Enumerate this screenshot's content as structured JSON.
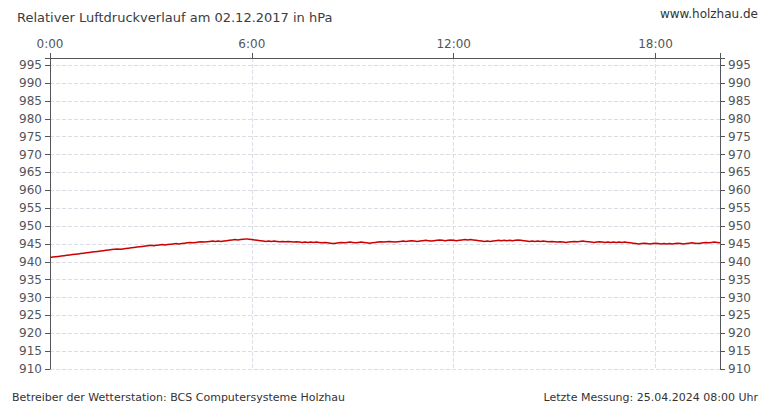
{
  "chart_data": {
    "type": "line",
    "title": "Relativer Luftdruckverlauf am 02.12.2017 in hPa",
    "annotations": [
      "www.holzhau.de",
      "Betreiber der Wetterstation: BCS Computersysteme Holzhau",
      "Letzte Messung: 25.04.2024 08:00 Uhr"
    ],
    "color": "#cc0000",
    "grid": true,
    "line_style": "dashed",
    "xlim": [
      0,
      239
    ],
    "xticks": [
      {
        "value": 0,
        "label": "0:00"
      },
      {
        "value": 72,
        "label": "6:00"
      },
      {
        "value": 144,
        "label": "12:00"
      },
      {
        "value": 216,
        "label": "18:00"
      }
    ],
    "ylim": [
      910,
      997
    ],
    "yticks": [
      910,
      915,
      920,
      925,
      930,
      935,
      940,
      945,
      950,
      955,
      960,
      965,
      970,
      975,
      980,
      985,
      990,
      995
    ],
    "y2lim": [
      910,
      997
    ],
    "y2ticks": [
      910,
      915,
      920,
      925,
      930,
      935,
      940,
      945,
      950,
      955,
      960,
      965,
      970,
      975,
      980,
      985,
      990,
      995
    ],
    "x": [
      0,
      1,
      2,
      3,
      4,
      5,
      6,
      7,
      8,
      9,
      10,
      11,
      12,
      13,
      14,
      15,
      16,
      17,
      18,
      19,
      20,
      21,
      22,
      23,
      24,
      25,
      26,
      27,
      28,
      29,
      30,
      31,
      32,
      33,
      34,
      35,
      36,
      37,
      38,
      39,
      40,
      41,
      42,
      43,
      44,
      45,
      46,
      47,
      48,
      49,
      50,
      51,
      52,
      53,
      54,
      55,
      56,
      57,
      58,
      59,
      60,
      61,
      62,
      63,
      64,
      65,
      66,
      67,
      68,
      69,
      70,
      71,
      72,
      73,
      74,
      75,
      76,
      77,
      78,
      79,
      80,
      81,
      82,
      83,
      84,
      85,
      86,
      87,
      88,
      89,
      90,
      91,
      92,
      93,
      94,
      95,
      96,
      97,
      98,
      99,
      100,
      101,
      102,
      103,
      104,
      105,
      106,
      107,
      108,
      109,
      110,
      111,
      112,
      113,
      114,
      115,
      116,
      117,
      118,
      119,
      120,
      121,
      122,
      123,
      124,
      125,
      126,
      127,
      128,
      129,
      130,
      131,
      132,
      133,
      134,
      135,
      136,
      137,
      138,
      139,
      140,
      141,
      142,
      143,
      144,
      145,
      146,
      147,
      148,
      149,
      150,
      151,
      152,
      153,
      154,
      155,
      156,
      157,
      158,
      159,
      160,
      161,
      162,
      163,
      164,
      165,
      166,
      167,
      168,
      169,
      170,
      171,
      172,
      173,
      174,
      175,
      176,
      177,
      178,
      179,
      180,
      181,
      182,
      183,
      184,
      185,
      186,
      187,
      188,
      189,
      190,
      191,
      192,
      193,
      194,
      195,
      196,
      197,
      198,
      199,
      200,
      201,
      202,
      203,
      204,
      205,
      206,
      207,
      208,
      209,
      210,
      211,
      212,
      213,
      214,
      215,
      216,
      217,
      218,
      219,
      220,
      221,
      222,
      223,
      224,
      225,
      226,
      227,
      228,
      229,
      230,
      231,
      232,
      233,
      234,
      235,
      236,
      237,
      238,
      239
    ],
    "values": [
      941.2,
      941.3,
      941.4,
      941.5,
      941.6,
      941.7,
      941.8,
      941.9,
      942.0,
      942.1,
      942.2,
      942.3,
      942.4,
      942.5,
      942.6,
      942.7,
      942.8,
      942.9,
      943.0,
      943.1,
      943.2,
      943.3,
      943.4,
      943.5,
      943.6,
      943.5,
      943.6,
      943.7,
      943.8,
      943.9,
      944.0,
      944.1,
      944.2,
      944.3,
      944.4,
      944.5,
      944.6,
      944.5,
      944.6,
      944.7,
      944.8,
      944.7,
      944.8,
      944.9,
      945.0,
      945.1,
      945.0,
      945.1,
      945.2,
      945.3,
      945.4,
      945.3,
      945.4,
      945.5,
      945.6,
      945.5,
      945.6,
      945.7,
      945.8,
      945.7,
      945.8,
      945.7,
      945.8,
      945.9,
      946.0,
      946.1,
      946.2,
      946.1,
      946.2,
      946.3,
      946.4,
      946.3,
      946.2,
      946.1,
      946.0,
      945.9,
      945.8,
      945.7,
      945.8,
      945.7,
      945.8,
      945.7,
      945.6,
      945.7,
      945.6,
      945.7,
      945.6,
      945.5,
      945.6,
      945.5,
      945.4,
      945.5,
      945.4,
      945.5,
      945.4,
      945.5,
      945.4,
      945.3,
      945.4,
      945.3,
      945.2,
      945.1,
      945.2,
      945.3,
      945.4,
      945.3,
      945.4,
      945.5,
      945.4,
      945.3,
      945.4,
      945.5,
      945.4,
      945.3,
      945.2,
      945.3,
      945.4,
      945.5,
      945.6,
      945.5,
      945.6,
      945.7,
      945.6,
      945.5,
      945.6,
      945.7,
      945.8,
      945.7,
      945.8,
      945.9,
      945.8,
      945.7,
      945.8,
      945.9,
      946.0,
      945.9,
      945.8,
      945.9,
      946.0,
      946.1,
      946.0,
      945.9,
      946.0,
      946.1,
      946.0,
      945.9,
      946.0,
      946.1,
      946.2,
      946.1,
      946.2,
      946.1,
      946.0,
      945.9,
      945.8,
      945.7,
      945.8,
      945.7,
      945.8,
      945.9,
      946.0,
      945.9,
      946.0,
      945.9,
      946.0,
      945.9,
      946.0,
      946.1,
      946.0,
      945.9,
      945.8,
      945.7,
      945.8,
      945.7,
      945.8,
      945.7,
      945.8,
      945.7,
      945.6,
      945.7,
      945.6,
      945.5,
      945.6,
      945.5,
      945.4,
      945.5,
      945.6,
      945.7,
      945.6,
      945.7,
      945.8,
      945.7,
      945.6,
      945.5,
      945.4,
      945.5,
      945.6,
      945.5,
      945.4,
      945.5,
      945.4,
      945.5,
      945.4,
      945.5,
      945.4,
      945.5,
      945.4,
      945.3,
      945.2,
      945.1,
      945.0,
      945.1,
      945.2,
      945.1,
      945.0,
      945.1,
      945.2,
      945.1,
      945.0,
      945.1,
      945.0,
      945.1,
      945.0,
      945.1,
      945.2,
      945.1,
      945.0,
      945.1,
      945.2,
      945.3,
      945.2,
      945.1,
      945.2,
      945.3,
      945.4,
      945.3,
      945.4,
      945.5,
      945.4,
      945.3
    ]
  }
}
